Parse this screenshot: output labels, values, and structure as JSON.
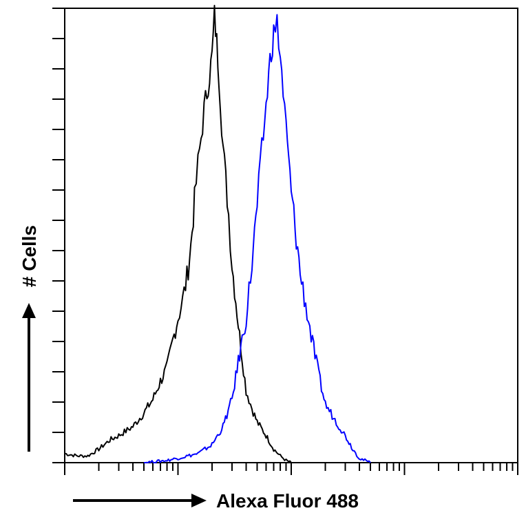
{
  "chart_data": {
    "type": "line",
    "title": "",
    "xlabel": "Alexa Fluor 488",
    "ylabel": "# Cells",
    "x_scale": "log",
    "xlim": [
      1,
      10000
    ],
    "ylim": [
      0,
      100
    ],
    "grid": false,
    "legend": "none",
    "series": [
      {
        "color": "#000000",
        "x": [
          1,
          1.3,
          1.6,
          2,
          2.5,
          3,
          4,
          5,
          6,
          7,
          8,
          9,
          10,
          11,
          12,
          13,
          14,
          15,
          16,
          17,
          18,
          19,
          20,
          21,
          22,
          23,
          25,
          28,
          30,
          35,
          40,
          45,
          50,
          60,
          70,
          80,
          90,
          100
        ],
        "y": [
          2,
          1.5,
          1.5,
          3,
          5,
          6,
          8,
          11,
          14,
          18,
          21,
          27,
          32,
          36,
          41,
          48,
          58,
          66,
          72,
          78,
          82,
          86,
          90,
          99,
          93,
          86,
          70,
          55,
          44,
          28,
          16,
          12,
          9,
          6,
          3,
          1.5,
          0.5,
          0
        ]
      },
      {
        "color": "#0000ff",
        "x": [
          5,
          8,
          10,
          15,
          20,
          25,
          30,
          35,
          40,
          45,
          50,
          55,
          60,
          65,
          70,
          75,
          80,
          90,
          100,
          120,
          150,
          180,
          200,
          250,
          300,
          350,
          400,
          500
        ],
        "y": [
          0,
          0.5,
          1,
          2,
          4,
          8,
          14,
          24,
          32,
          44,
          57,
          69,
          79,
          89,
          95,
          97,
          90,
          74,
          60,
          42,
          28,
          18,
          13,
          9,
          6,
          3,
          1,
          0
        ]
      }
    ]
  }
}
